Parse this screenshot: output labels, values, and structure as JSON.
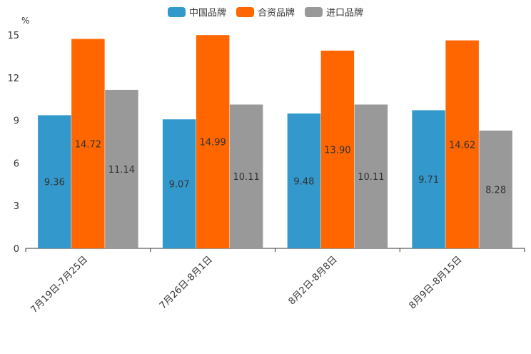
{
  "chart_data": {
    "type": "bar",
    "title": "",
    "ylabel": "%",
    "xlabel": "",
    "ylim": [
      0,
      15
    ],
    "yticks": [
      "0",
      "3",
      "6",
      "9",
      "12",
      "15"
    ],
    "categories": [
      "7月19日-7月25日",
      "7月26日-8月1日",
      "8月2日-8月8日",
      "8月9日-8月15日"
    ],
    "series": [
      {
        "name": "中国品牌",
        "color": "#3399cc",
        "values": [
          9.36,
          9.07,
          9.48,
          9.71
        ],
        "labels": [
          "9.36",
          "9.07",
          "9.48",
          "9.71"
        ]
      },
      {
        "name": "合资品牌",
        "color": "#ff6600",
        "values": [
          14.72,
          14.99,
          13.9,
          14.62
        ],
        "labels": [
          "14.72",
          "14.99",
          "13.90",
          "14.62"
        ]
      },
      {
        "name": "进口品牌",
        "color": "#999999",
        "values": [
          11.14,
          10.11,
          10.11,
          8.28
        ],
        "labels": [
          "11.14",
          "10.11",
          "10.11",
          "8.28"
        ]
      }
    ],
    "legend_position": "top-center"
  }
}
